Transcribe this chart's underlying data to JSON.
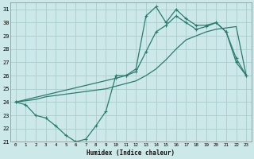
{
  "xlabel": "Humidex (Indice chaleur)",
  "xlim": [
    -0.5,
    23.5
  ],
  "ylim": [
    21,
    31.5
  ],
  "yticks": [
    21,
    22,
    23,
    24,
    25,
    26,
    27,
    28,
    29,
    30,
    31
  ],
  "xticks": [
    0,
    1,
    2,
    3,
    4,
    5,
    6,
    7,
    8,
    9,
    10,
    11,
    12,
    13,
    14,
    15,
    16,
    17,
    18,
    19,
    20,
    21,
    22,
    23
  ],
  "background_color": "#cce8e8",
  "grid_color": "#aacccc",
  "line_color": "#2d7b6e",
  "line1_x": [
    0,
    1,
    2,
    3,
    4,
    5,
    6,
    7,
    8,
    9,
    10,
    11,
    12,
    13,
    14,
    15,
    16,
    17,
    18,
    19,
    20,
    21,
    22,
    23
  ],
  "line1_y": [
    24.0,
    23.8,
    23.0,
    22.8,
    22.2,
    21.5,
    21.0,
    21.2,
    22.2,
    23.3,
    26.0,
    26.0,
    26.5,
    30.5,
    31.2,
    30.0,
    31.0,
    30.3,
    29.8,
    29.8,
    30.0,
    29.3,
    27.3,
    26.0
  ],
  "line2_x": [
    0,
    10,
    11,
    12,
    13,
    14,
    15,
    16,
    17,
    18,
    19,
    20,
    21,
    22,
    23
  ],
  "line2_y": [
    24.0,
    25.8,
    26.0,
    26.3,
    27.8,
    29.3,
    29.8,
    30.5,
    30.0,
    29.5,
    29.7,
    30.0,
    29.3,
    27.0,
    26.0
  ],
  "line3_x": [
    0,
    1,
    2,
    3,
    4,
    5,
    6,
    7,
    8,
    9,
    10,
    11,
    12,
    13,
    14,
    15,
    16,
    17,
    18,
    19,
    20,
    21,
    22,
    23
  ],
  "line3_y": [
    24.0,
    24.1,
    24.2,
    24.4,
    24.5,
    24.6,
    24.7,
    24.8,
    24.9,
    25.0,
    25.2,
    25.4,
    25.6,
    26.0,
    26.5,
    27.2,
    28.0,
    28.7,
    29.0,
    29.3,
    29.5,
    29.6,
    29.7,
    26.0
  ]
}
